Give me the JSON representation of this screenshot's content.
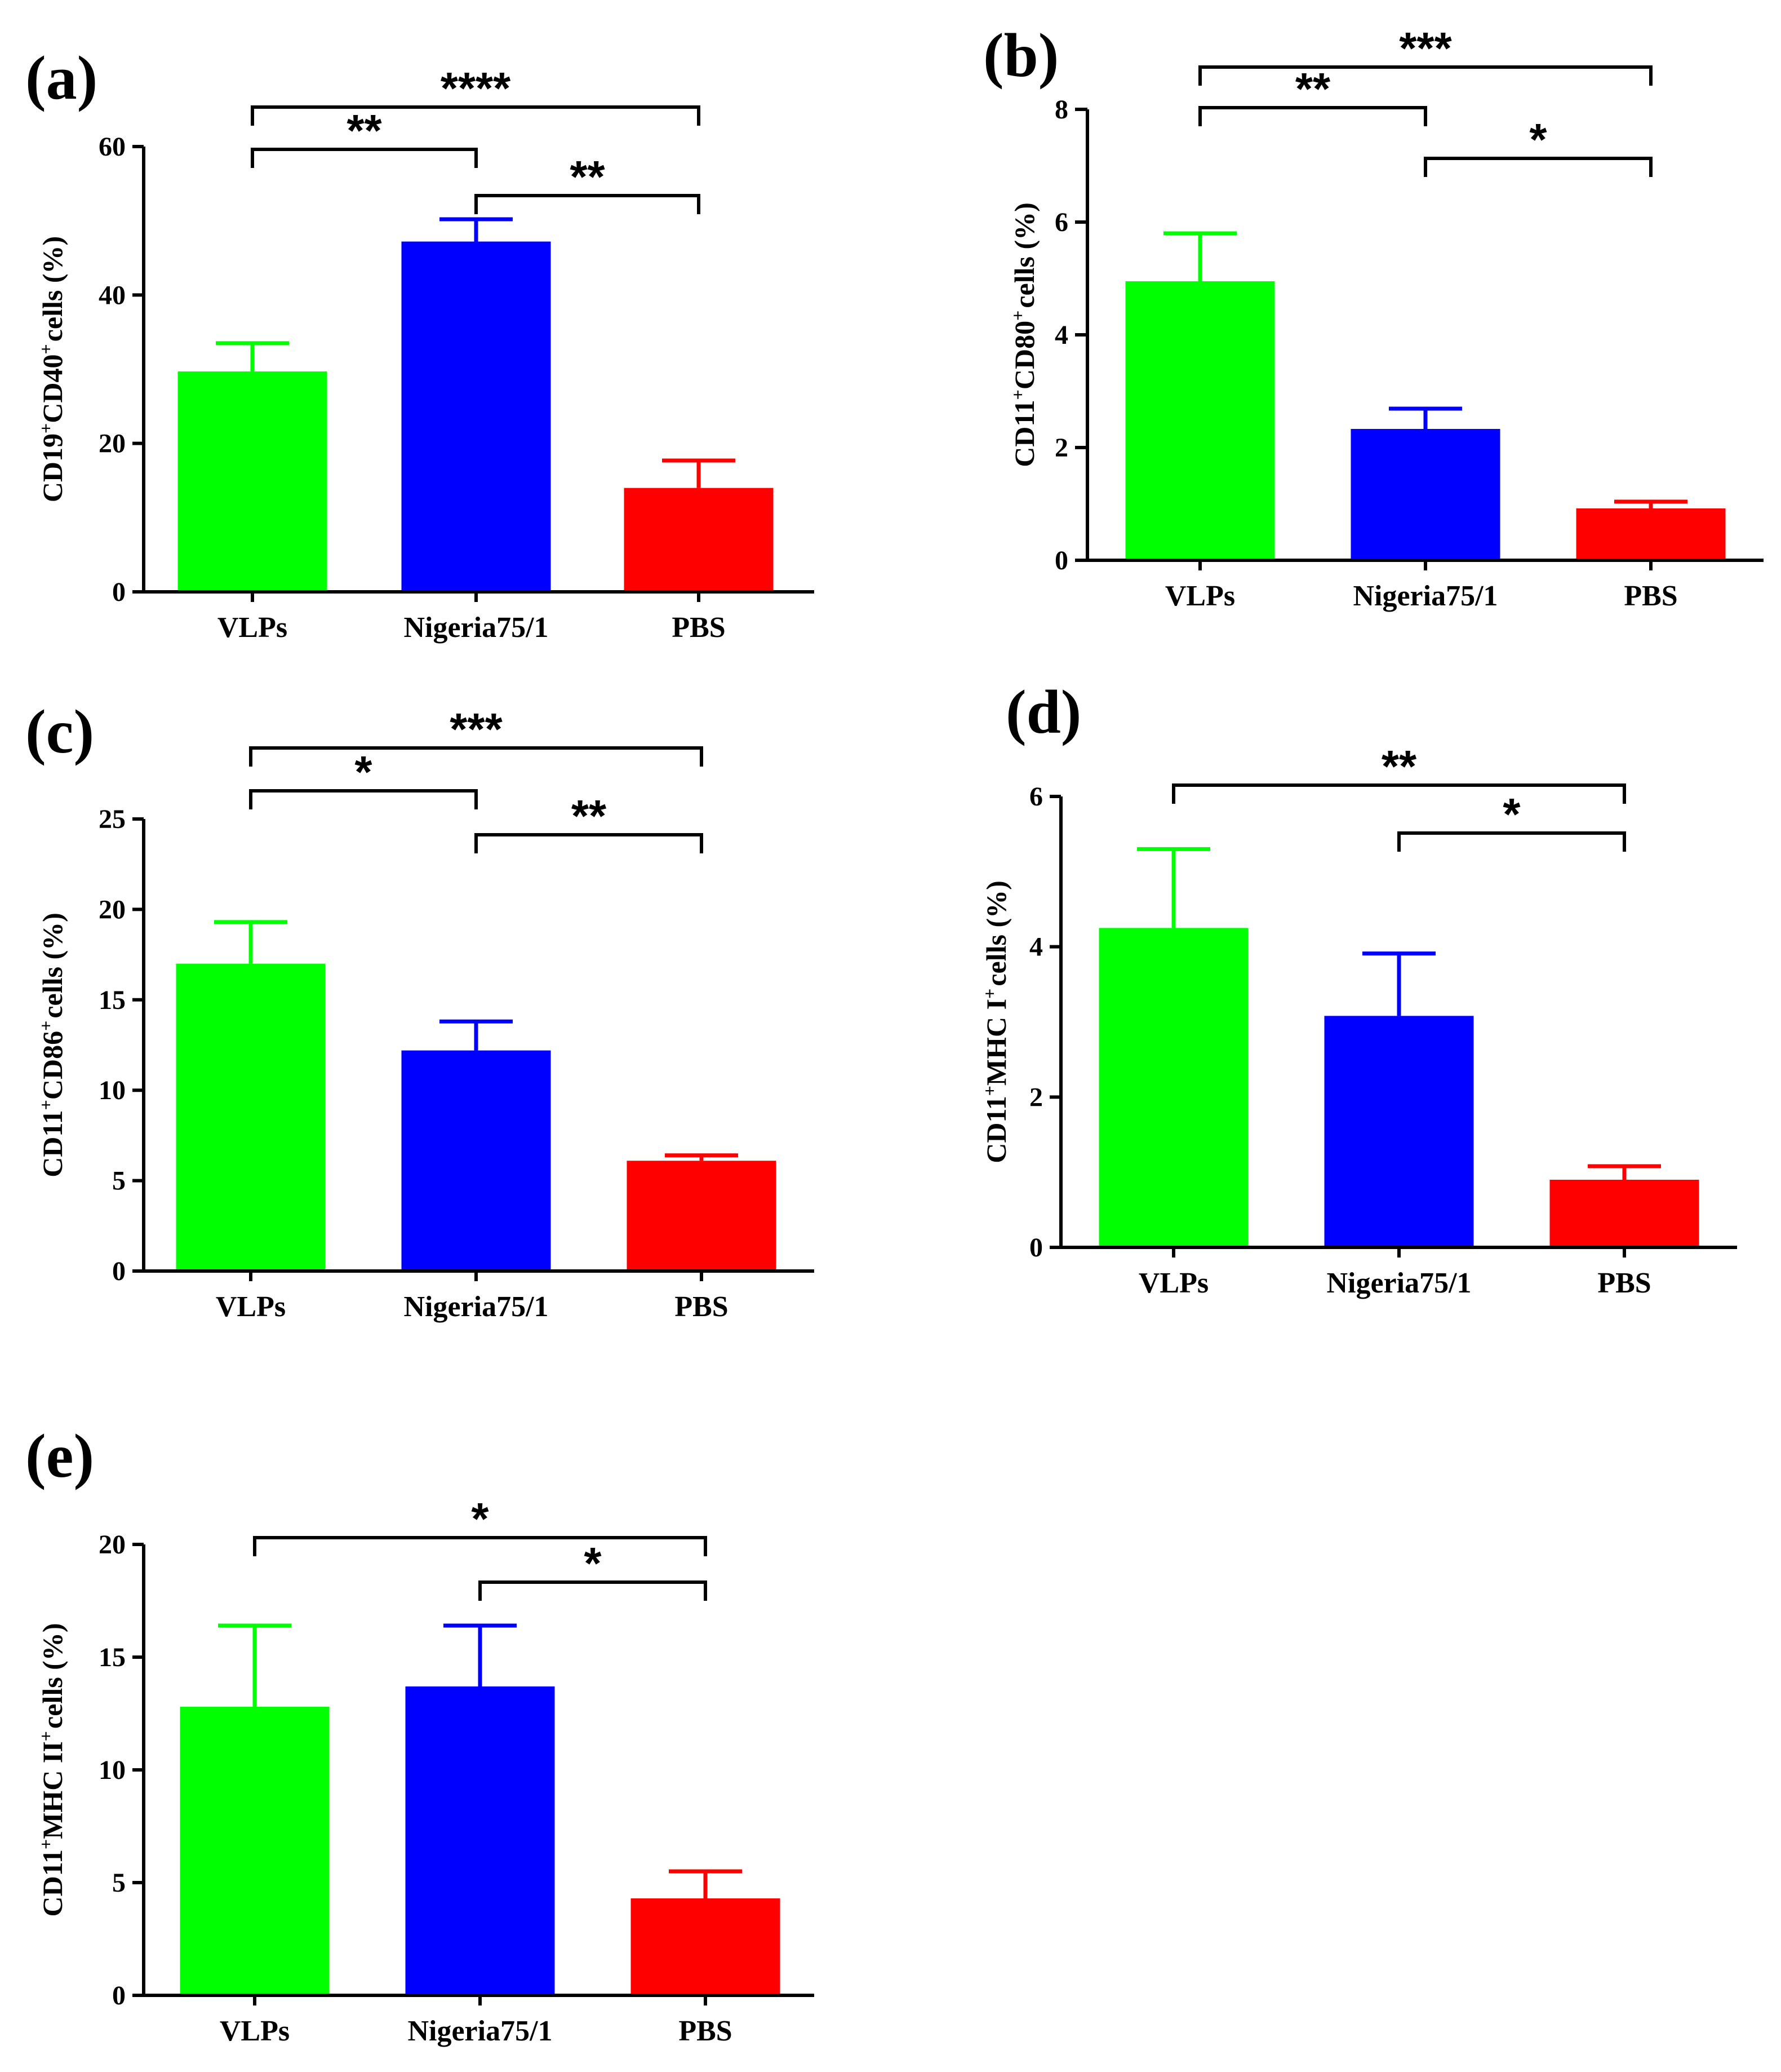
{
  "chart_data": [
    {
      "type": "bar",
      "panel_label": "(a)",
      "categories": [
        "VLPs",
        "Nigeria75/1",
        "PBS"
      ],
      "values": [
        29.7,
        47.2,
        14.0
      ],
      "errors": [
        3.8,
        3.0,
        3.7
      ],
      "colors": [
        "#00ff00",
        "#0000ff",
        "#ff0000"
      ],
      "ylim": [
        0,
        60
      ],
      "yticks": [
        "0",
        "20",
        "40",
        "60"
      ],
      "ytick_values": [
        0,
        20,
        40,
        60
      ],
      "ylabel": {
        "parts": [
          {
            "text": "CD19",
            "sup": false
          },
          {
            "text": "+",
            "sup": true
          },
          {
            "text": "CD40",
            "sup": false
          },
          {
            "text": "+",
            "sup": true
          },
          {
            "text": "cells (%)",
            "sup": false
          }
        ]
      },
      "significance": [
        {
          "from": 0,
          "to": 1,
          "label": "**"
        },
        {
          "from": 1,
          "to": 2,
          "label": "**"
        },
        {
          "from": 0,
          "to": 2,
          "label": "****"
        }
      ]
    },
    {
      "type": "bar",
      "panel_label": "(b)",
      "categories": [
        "VLPs",
        "Nigeria75/1",
        "PBS"
      ],
      "values": [
        4.95,
        2.33,
        0.92
      ],
      "errors": [
        0.85,
        0.36,
        0.12
      ],
      "colors": [
        "#00ff00",
        "#0000ff",
        "#ff0000"
      ],
      "ylim": [
        0,
        8
      ],
      "yticks": [
        "0",
        "2",
        "4",
        "6",
        "8"
      ],
      "ytick_values": [
        0,
        2,
        4,
        6,
        8
      ],
      "ylabel": {
        "parts": [
          {
            "text": "CD11",
            "sup": false
          },
          {
            "text": "+",
            "sup": true
          },
          {
            "text": "CD80",
            "sup": false
          },
          {
            "text": "+",
            "sup": true
          },
          {
            "text": "cells (%)",
            "sup": false
          }
        ]
      },
      "significance": [
        {
          "from": 0,
          "to": 1,
          "label": "**"
        },
        {
          "from": 1,
          "to": 2,
          "label": "*"
        },
        {
          "from": 0,
          "to": 2,
          "label": "***"
        }
      ]
    },
    {
      "type": "bar",
      "panel_label": "(c)",
      "categories": [
        "VLPs",
        "Nigeria75/1",
        "PBS"
      ],
      "values": [
        17.0,
        12.2,
        6.1
      ],
      "errors": [
        2.3,
        1.6,
        0.3
      ],
      "colors": [
        "#00ff00",
        "#0000ff",
        "#ff0000"
      ],
      "ylim": [
        0,
        25
      ],
      "yticks": [
        "0",
        "5",
        "10",
        "15",
        "20",
        "25"
      ],
      "ytick_values": [
        0,
        5,
        10,
        15,
        20,
        25
      ],
      "ylabel": {
        "parts": [
          {
            "text": "CD11",
            "sup": false
          },
          {
            "text": "+",
            "sup": true
          },
          {
            "text": "CD86",
            "sup": false
          },
          {
            "text": "+",
            "sup": true
          },
          {
            "text": "cells (%)",
            "sup": false
          }
        ]
      },
      "significance": [
        {
          "from": 0,
          "to": 1,
          "label": "*"
        },
        {
          "from": 1,
          "to": 2,
          "label": "**"
        },
        {
          "from": 0,
          "to": 2,
          "label": "***"
        }
      ]
    },
    {
      "type": "bar",
      "panel_label": "(d)",
      "categories": [
        "VLPs",
        "Nigeria75/1",
        "PBS"
      ],
      "values": [
        4.25,
        3.08,
        0.9
      ],
      "errors": [
        1.05,
        0.83,
        0.18
      ],
      "colors": [
        "#00ff00",
        "#0000ff",
        "#ff0000"
      ],
      "ylim": [
        0,
        6
      ],
      "yticks": [
        "0",
        "2",
        "4",
        "6"
      ],
      "ytick_values": [
        0,
        2,
        4,
        6
      ],
      "ylabel": {
        "parts": [
          {
            "text": "CD11",
            "sup": false
          },
          {
            "text": "+",
            "sup": true
          },
          {
            "text": "MHC I",
            "sup": false
          },
          {
            "text": "+",
            "sup": true
          },
          {
            "text": "cells (%)",
            "sup": false
          }
        ]
      },
      "significance": [
        {
          "from": 1,
          "to": 2,
          "label": "*"
        },
        {
          "from": 0,
          "to": 2,
          "label": "**"
        }
      ]
    },
    {
      "type": "bar",
      "panel_label": "(e)",
      "categories": [
        "VLPs",
        "Nigeria75/1",
        "PBS"
      ],
      "values": [
        12.8,
        13.7,
        4.3
      ],
      "errors": [
        3.6,
        2.7,
        1.2
      ],
      "colors": [
        "#00ff00",
        "#0000ff",
        "#ff0000"
      ],
      "ylim": [
        0,
        20
      ],
      "yticks": [
        "0",
        "5",
        "10",
        "15",
        "20"
      ],
      "ytick_values": [
        0,
        5,
        10,
        15,
        20
      ],
      "ylabel": {
        "parts": [
          {
            "text": "CD11",
            "sup": false
          },
          {
            "text": "+",
            "sup": true
          },
          {
            "text": "MHC II",
            "sup": false
          },
          {
            "text": "+",
            "sup": true
          },
          {
            "text": "cells (%)",
            "sup": false
          }
        ]
      },
      "significance": [
        {
          "from": 1,
          "to": 2,
          "label": "*"
        },
        {
          "from": 0,
          "to": 2,
          "label": "*"
        }
      ]
    }
  ]
}
